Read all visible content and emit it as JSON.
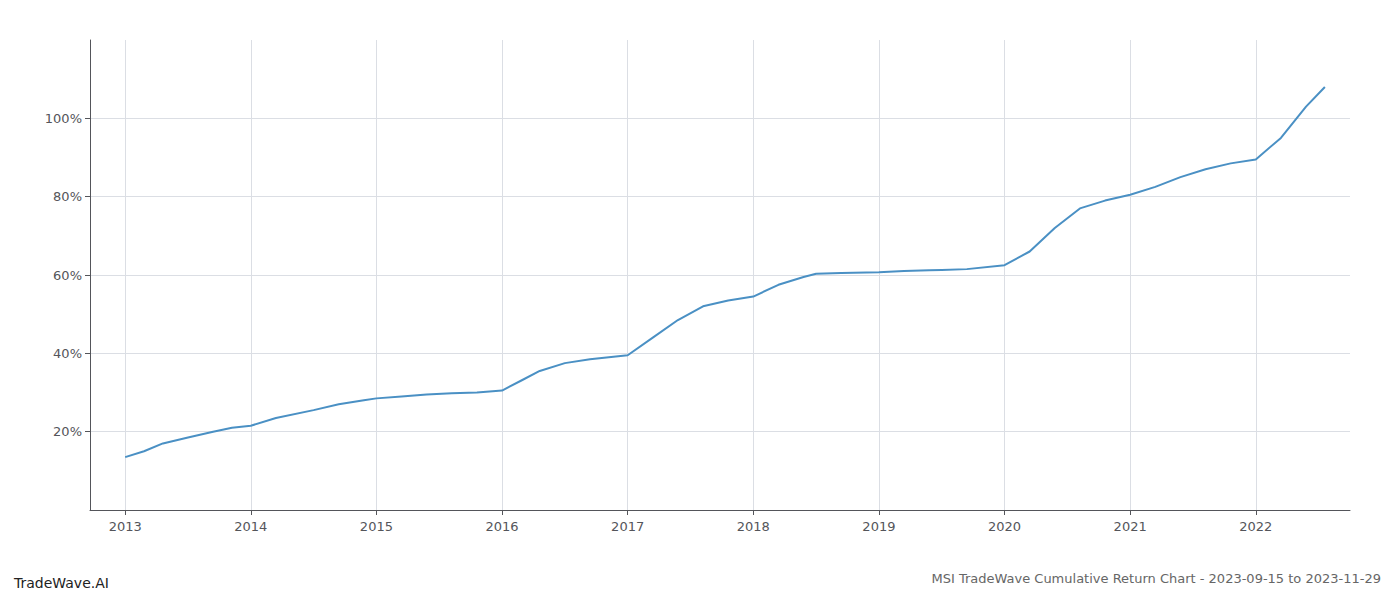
{
  "chart_data": {
    "type": "line",
    "title": "MSI TradeWave Cumulative Return Chart - 2023-09-15 to 2023-11-29",
    "annotations": [
      "TradeWave.AI"
    ],
    "x": [
      2013.0,
      2013.15,
      2013.3,
      2013.5,
      2013.7,
      2013.85,
      2014.0,
      2014.2,
      2014.5,
      2014.7,
      2014.9,
      2015.0,
      2015.2,
      2015.4,
      2015.6,
      2015.8,
      2016.0,
      2016.15,
      2016.3,
      2016.5,
      2016.7,
      2016.85,
      2017.0,
      2017.2,
      2017.4,
      2017.6,
      2017.8,
      2018.0,
      2018.2,
      2018.4,
      2018.5,
      2018.7,
      2019.0,
      2019.2,
      2019.4,
      2019.5,
      2019.7,
      2020.0,
      2020.2,
      2020.4,
      2020.6,
      2020.8,
      2021.0,
      2021.2,
      2021.4,
      2021.6,
      2021.8,
      2022.0,
      2022.2,
      2022.4,
      2022.55
    ],
    "values": [
      13.5,
      15.0,
      17.0,
      18.5,
      20.0,
      21.0,
      21.5,
      23.5,
      25.5,
      27.0,
      28.0,
      28.5,
      29.0,
      29.5,
      29.8,
      30.0,
      30.5,
      33.0,
      35.5,
      37.5,
      38.5,
      39.0,
      39.5,
      44.0,
      48.5,
      52.0,
      53.5,
      54.5,
      57.5,
      59.5,
      60.3,
      60.5,
      60.7,
      61.0,
      61.2,
      61.3,
      61.5,
      62.5,
      66.0,
      72.0,
      77.0,
      79.0,
      80.5,
      82.5,
      85.0,
      87.0,
      88.5,
      89.5,
      95.0,
      103.0,
      108.0
    ],
    "color": "#4a90c4",
    "xlim": [
      2012.72,
      2022.75
    ],
    "xticks": [
      2013,
      2014,
      2015,
      2016,
      2017,
      2018,
      2019,
      2020,
      2021,
      2022
    ],
    "ylim": [
      0,
      120
    ],
    "yticks": [
      {
        "value": 20,
        "label": "20%"
      },
      {
        "value": 40,
        "label": "40%"
      },
      {
        "value": 60,
        "label": "60%"
      },
      {
        "value": 80,
        "label": "80%"
      },
      {
        "value": 100,
        "label": "100%"
      }
    ],
    "grid": true
  }
}
